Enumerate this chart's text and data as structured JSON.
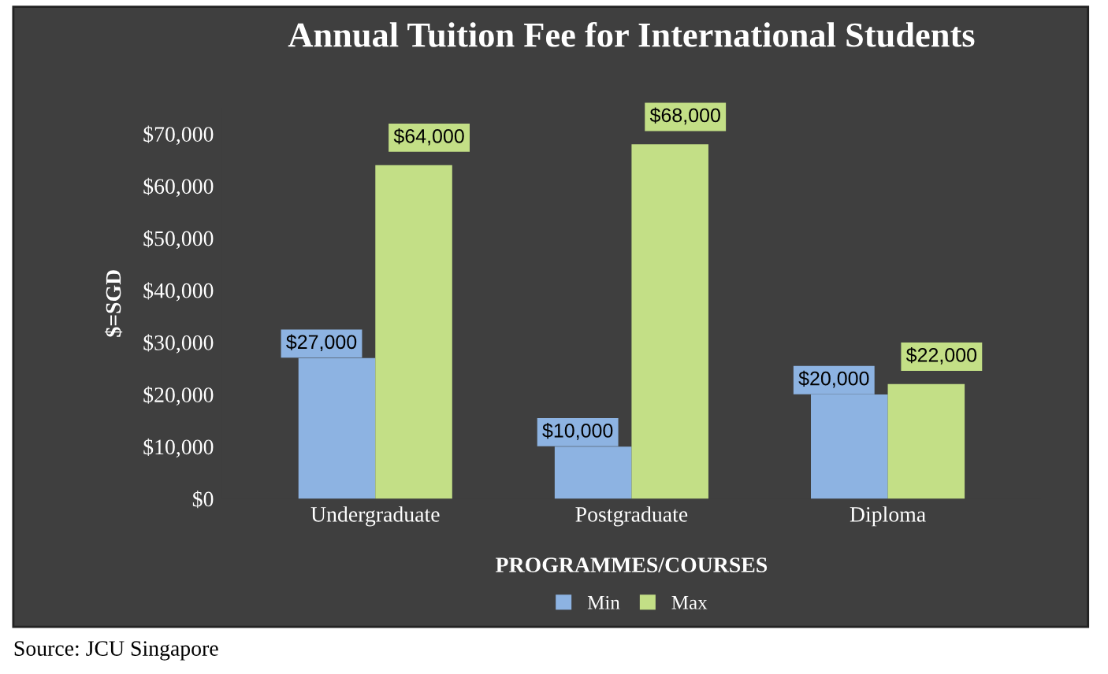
{
  "chart_data": {
    "type": "bar",
    "title": "Annual Tuition Fee for International Students",
    "xlabel": "PROGRAMMES/COURSES",
    "ylabel": "$=SGD",
    "categories": [
      "Undergraduate",
      "Postgraduate",
      "Diploma"
    ],
    "series": [
      {
        "name": "Min",
        "color": "#8db3e2",
        "values": [
          27000,
          10000,
          20000
        ],
        "value_labels": [
          "$27,000",
          "$10,000",
          "$20,000"
        ]
      },
      {
        "name": "Max",
        "color": "#c3df86",
        "values": [
          64000,
          68000,
          22000
        ],
        "value_labels": [
          "$64,000",
          "$68,000",
          "$22,000"
        ]
      }
    ],
    "ylim": [
      0,
      75000
    ],
    "yticks": [
      {
        "value": 0,
        "label": "$0"
      },
      {
        "value": 10000,
        "label": "$10,000"
      },
      {
        "value": 20000,
        "label": "$20,000"
      },
      {
        "value": 30000,
        "label": "$30,000"
      },
      {
        "value": 40000,
        "label": "$40,000"
      },
      {
        "value": 50000,
        "label": "$50,000"
      },
      {
        "value": 60000,
        "label": "$60,000"
      },
      {
        "value": 70000,
        "label": "$70,000"
      }
    ],
    "grid": false,
    "legend": "bottom",
    "annotations": [
      "Source: JCU Singapore"
    ]
  }
}
